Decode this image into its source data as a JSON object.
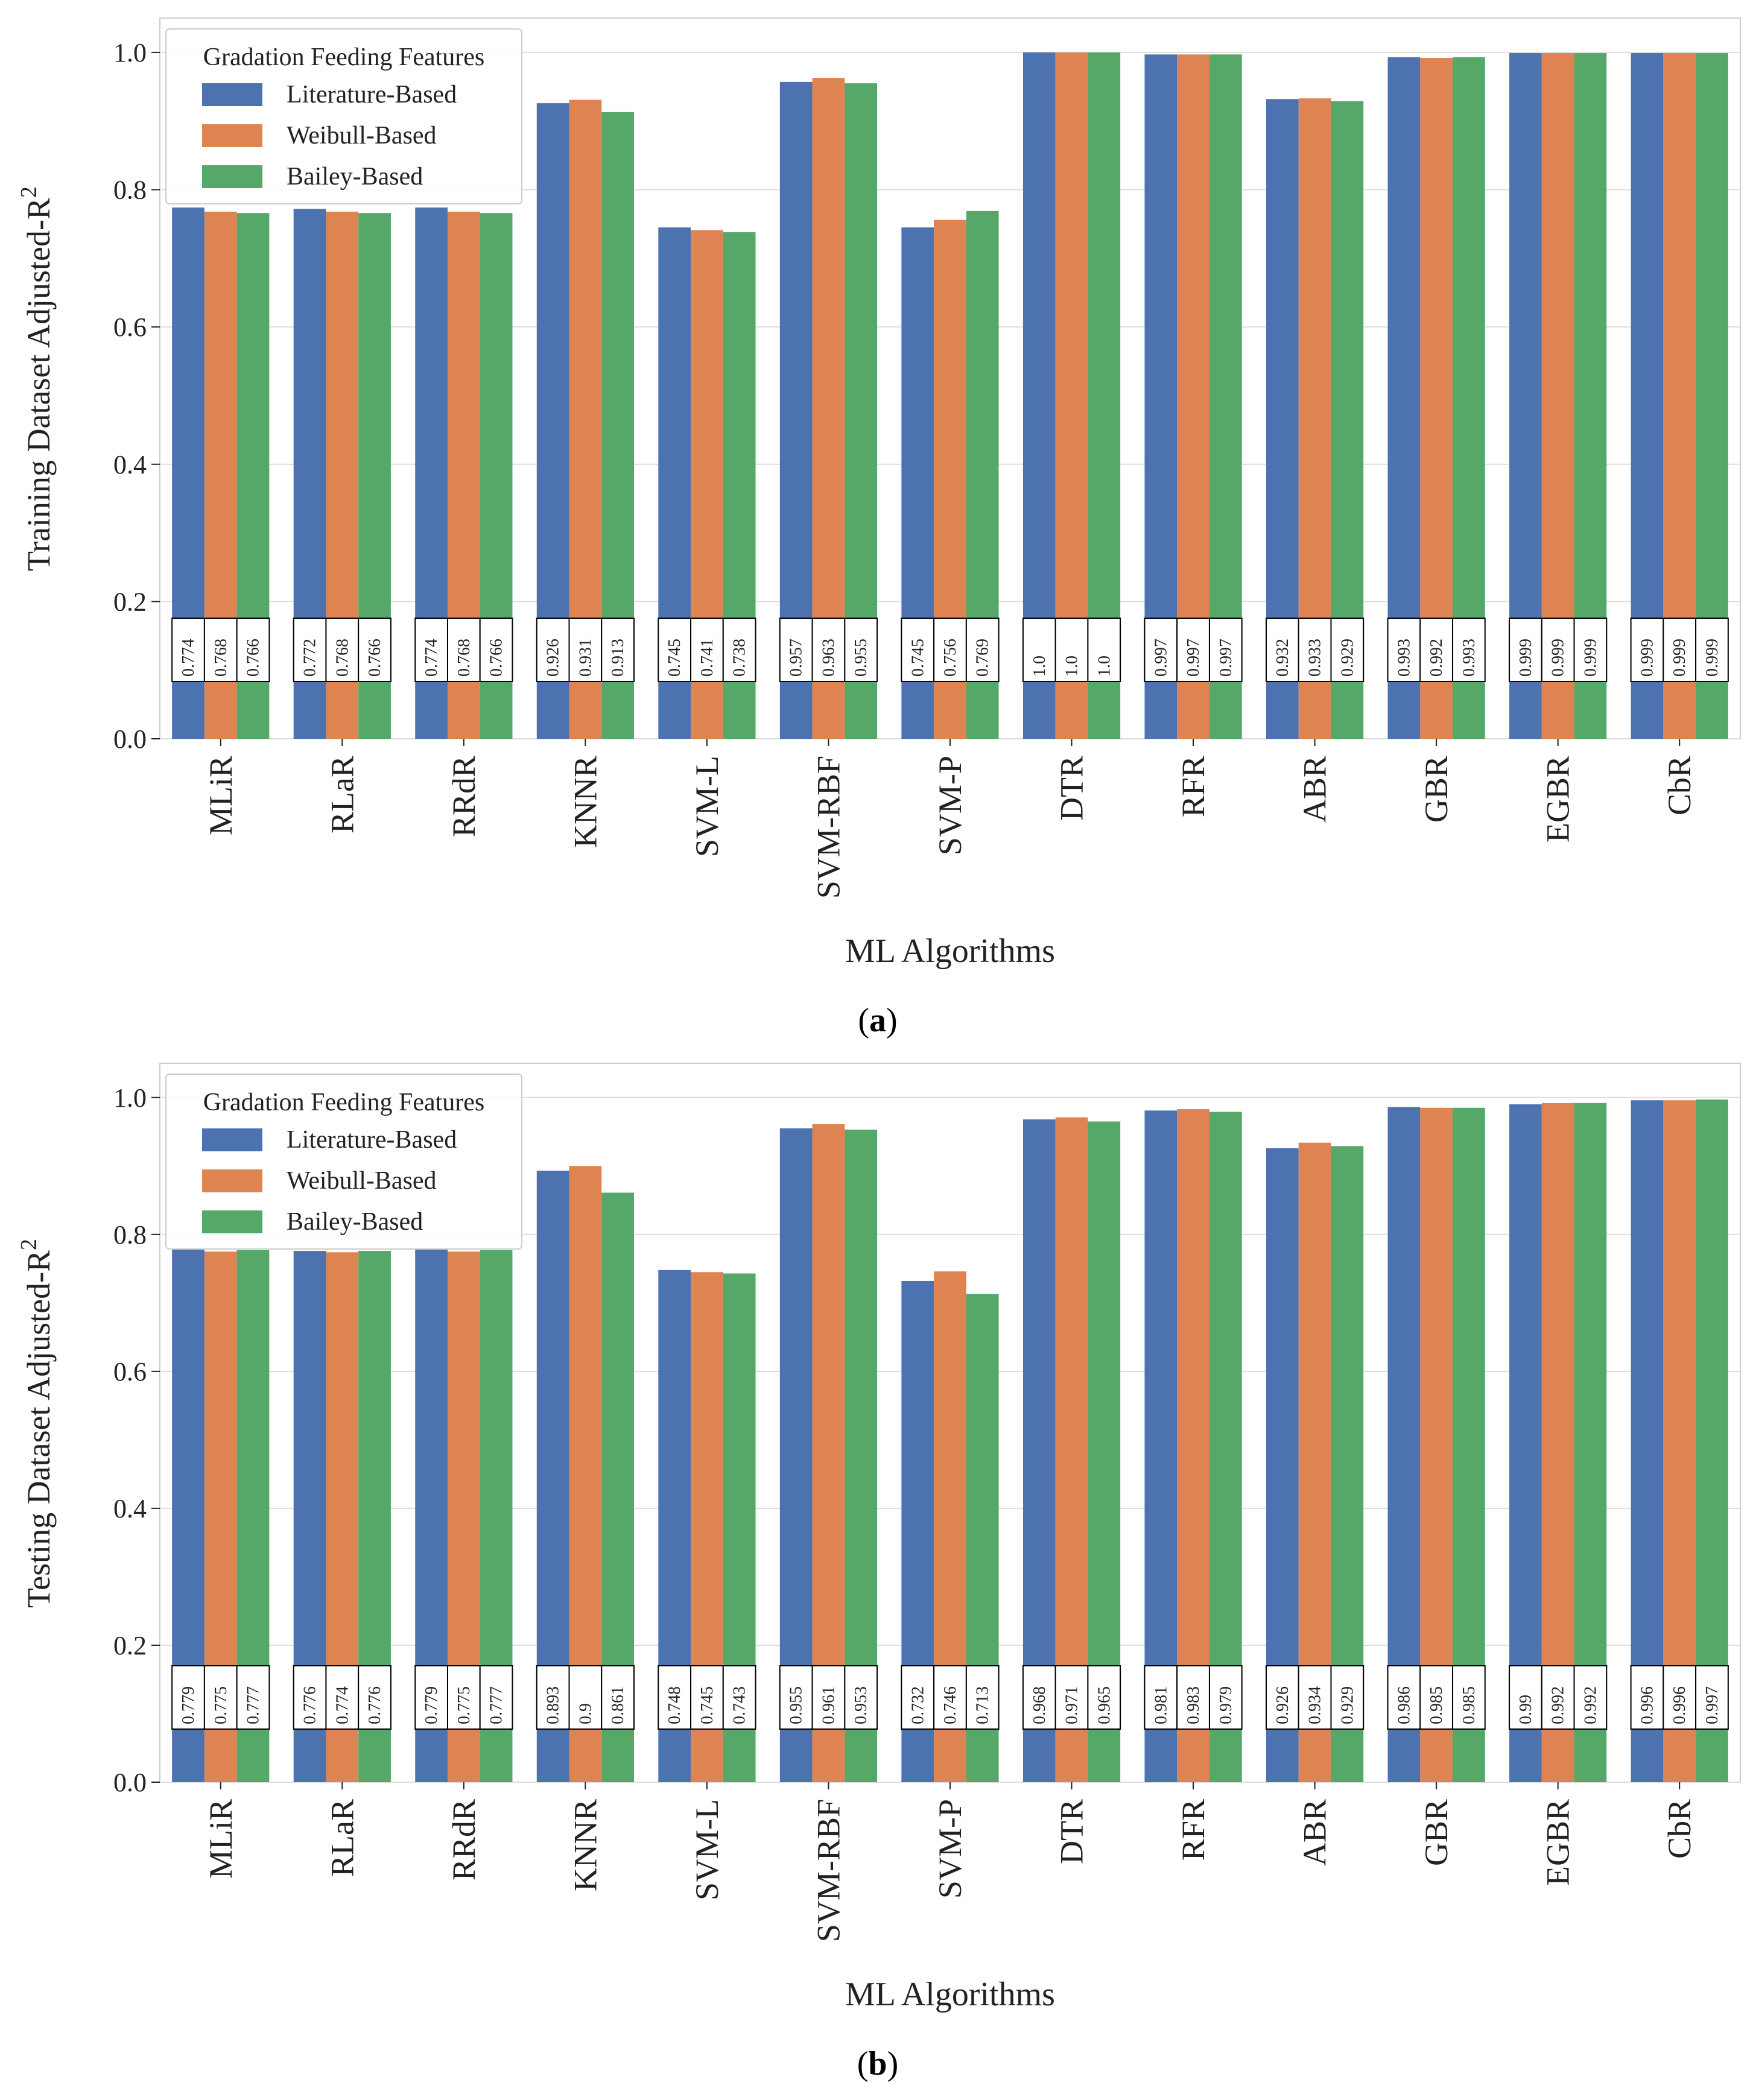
{
  "chart_data": [
    {
      "panel": "(a)",
      "panel_letter": "a",
      "type": "bar",
      "xlabel": "ML Algorithms",
      "ylabel": "Training Dataset Adjusted-R",
      "ylabel_sup": "2",
      "ylim": [
        0,
        1.05
      ],
      "yticks": [
        "0.0",
        "0.2",
        "0.4",
        "0.6",
        "0.8",
        "1.0"
      ],
      "grid": true,
      "legend": {
        "title": "Gradation Feeding Features",
        "placement": "top-left",
        "entries": [
          "Literature-Based",
          "Weibull-Based",
          "Bailey-Based"
        ]
      },
      "categories": [
        "MLiR",
        "RLaR",
        "RRdR",
        "KNNR",
        "SVM-L",
        "SVM-RBF",
        "SVM-P",
        "DTR",
        "RFR",
        "ABR",
        "GBR",
        "EGBR",
        "CbR"
      ],
      "series": [
        {
          "name": "Literature-Based",
          "values": [
            0.774,
            0.772,
            0.774,
            0.926,
            0.745,
            0.957,
            0.745,
            1.0,
            0.997,
            0.932,
            0.993,
            0.999,
            0.999
          ],
          "labels": [
            "0.774",
            "0.772",
            "0.774",
            "0.926",
            "0.745",
            "0.957",
            "0.745",
            "1.0",
            "0.997",
            "0.932",
            "0.993",
            "0.999",
            "0.999"
          ]
        },
        {
          "name": "Weibull-Based",
          "values": [
            0.768,
            0.768,
            0.768,
            0.931,
            0.741,
            0.963,
            0.756,
            1.0,
            0.997,
            0.933,
            0.992,
            0.999,
            0.999
          ],
          "labels": [
            "0.768",
            "0.768",
            "0.768",
            "0.931",
            "0.741",
            "0.963",
            "0.756",
            "1.0",
            "0.997",
            "0.933",
            "0.992",
            "0.999",
            "0.999"
          ]
        },
        {
          "name": "Bailey-Based",
          "values": [
            0.766,
            0.766,
            0.766,
            0.913,
            0.738,
            0.955,
            0.769,
            1.0,
            0.997,
            0.929,
            0.993,
            0.999,
            0.999
          ],
          "labels": [
            "0.766",
            "0.766",
            "0.766",
            "0.913",
            "0.738",
            "0.955",
            "0.769",
            "1.0",
            "0.997",
            "0.929",
            "0.993",
            "0.999",
            "0.999"
          ]
        }
      ]
    },
    {
      "panel": "(b)",
      "panel_letter": "b",
      "type": "bar",
      "xlabel": "ML Algorithms",
      "ylabel": "Testing Dataset Adjusted-R",
      "ylabel_sup": "2",
      "ylim": [
        0,
        1.05
      ],
      "yticks": [
        "0.0",
        "0.2",
        "0.4",
        "0.6",
        "0.8",
        "1.0"
      ],
      "grid": true,
      "legend": {
        "title": "Gradation Feeding Features",
        "placement": "top-left",
        "entries": [
          "Literature-Based",
          "Weibull-Based",
          "Bailey-Based"
        ]
      },
      "categories": [
        "MLiR",
        "RLaR",
        "RRdR",
        "KNNR",
        "SVM-L",
        "SVM-RBF",
        "SVM-P",
        "DTR",
        "RFR",
        "ABR",
        "GBR",
        "EGBR",
        "CbR"
      ],
      "series": [
        {
          "name": "Literature-Based",
          "values": [
            0.779,
            0.776,
            0.779,
            0.893,
            0.748,
            0.955,
            0.732,
            0.968,
            0.981,
            0.926,
            0.986,
            0.99,
            0.996
          ],
          "labels": [
            "0.779",
            "0.776",
            "0.779",
            "0.893",
            "0.748",
            "0.955",
            "0.732",
            "0.968",
            "0.981",
            "0.926",
            "0.986",
            "0.99",
            "0.996"
          ]
        },
        {
          "name": "Weibull-Based",
          "values": [
            0.775,
            0.774,
            0.775,
            0.9,
            0.745,
            0.961,
            0.746,
            0.971,
            0.983,
            0.934,
            0.985,
            0.992,
            0.996
          ],
          "labels": [
            "0.775",
            "0.774",
            "0.775",
            "0.9",
            "0.745",
            "0.961",
            "0.746",
            "0.971",
            "0.983",
            "0.934",
            "0.985",
            "0.992",
            "0.996"
          ]
        },
        {
          "name": "Bailey-Based",
          "values": [
            0.777,
            0.776,
            0.777,
            0.861,
            0.743,
            0.953,
            0.713,
            0.965,
            0.979,
            0.929,
            0.985,
            0.992,
            0.997
          ],
          "labels": [
            "0.777",
            "0.776",
            "0.777",
            "0.861",
            "0.743",
            "0.953",
            "0.713",
            "0.965",
            "0.979",
            "0.929",
            "0.985",
            "0.992",
            "0.997"
          ]
        }
      ]
    }
  ],
  "colors": {
    "series": [
      "#4C72B0",
      "#DD8452",
      "#55A868"
    ],
    "grid": "#dddddd",
    "frame": "#cccccc",
    "text": "#222222"
  }
}
